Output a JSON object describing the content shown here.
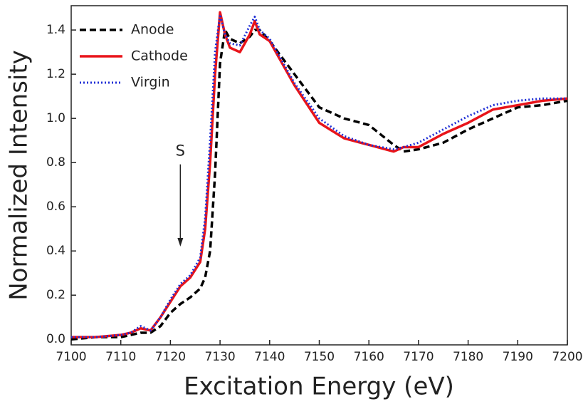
{
  "chart_data": {
    "type": "line",
    "xlabel": "Excitation Energy (eV)",
    "ylabel": "Normalized Intensity",
    "x": [
      7100,
      7105,
      7110,
      7112,
      7114,
      7116,
      7118,
      7120,
      7122,
      7124,
      7126,
      7127,
      7128,
      7129,
      7130,
      7131,
      7132,
      7134,
      7136,
      7137,
      7138,
      7140,
      7145,
      7150,
      7155,
      7160,
      7165,
      7167,
      7170,
      7175,
      7180,
      7185,
      7190,
      7195,
      7200
    ],
    "series": [
      {
        "name": "Anode",
        "color": "#000000",
        "style": "dashed",
        "values": [
          0.0,
          0.01,
          0.01,
          0.02,
          0.03,
          0.03,
          0.06,
          0.12,
          0.16,
          0.19,
          0.23,
          0.28,
          0.4,
          0.75,
          1.25,
          1.4,
          1.36,
          1.34,
          1.37,
          1.4,
          1.4,
          1.35,
          1.2,
          1.05,
          1.0,
          0.97,
          0.88,
          0.85,
          0.86,
          0.89,
          0.95,
          1.0,
          1.05,
          1.06,
          1.08
        ]
      },
      {
        "name": "Cathode",
        "color": "#e8141a",
        "style": "solid",
        "values": [
          0.01,
          0.01,
          0.02,
          0.03,
          0.05,
          0.04,
          0.1,
          0.17,
          0.24,
          0.28,
          0.35,
          0.5,
          0.8,
          1.2,
          1.48,
          1.38,
          1.32,
          1.3,
          1.38,
          1.44,
          1.38,
          1.35,
          1.15,
          0.98,
          0.91,
          0.88,
          0.85,
          0.87,
          0.87,
          0.93,
          0.98,
          1.04,
          1.06,
          1.08,
          1.09
        ]
      },
      {
        "name": "Virgin",
        "color": "#1f2fd6",
        "style": "dotted",
        "values": [
          0.01,
          0.01,
          0.02,
          0.03,
          0.06,
          0.04,
          0.1,
          0.18,
          0.25,
          0.29,
          0.37,
          0.55,
          0.9,
          1.3,
          1.47,
          1.38,
          1.34,
          1.33,
          1.42,
          1.46,
          1.4,
          1.36,
          1.16,
          1.0,
          0.92,
          0.88,
          0.86,
          0.87,
          0.89,
          0.95,
          1.01,
          1.06,
          1.08,
          1.09,
          1.09
        ]
      }
    ],
    "xlim": [
      7100,
      7200
    ],
    "xticks": [
      7100,
      7110,
      7120,
      7130,
      7140,
      7150,
      7160,
      7170,
      7180,
      7190,
      7200
    ],
    "ylim": [
      -0.025,
      1.51
    ],
    "yticks": [
      {
        "value": 0,
        "label": "0.0"
      },
      0.2,
      0.4,
      0.6,
      0.8,
      {
        "value": 1,
        "label": "1.0"
      },
      1.2,
      1.4
    ],
    "legend": "upper-left",
    "annotations": [
      {
        "text": "S",
        "x": 7122,
        "y": 0.85,
        "arrow_to": 0.42
      }
    ]
  }
}
